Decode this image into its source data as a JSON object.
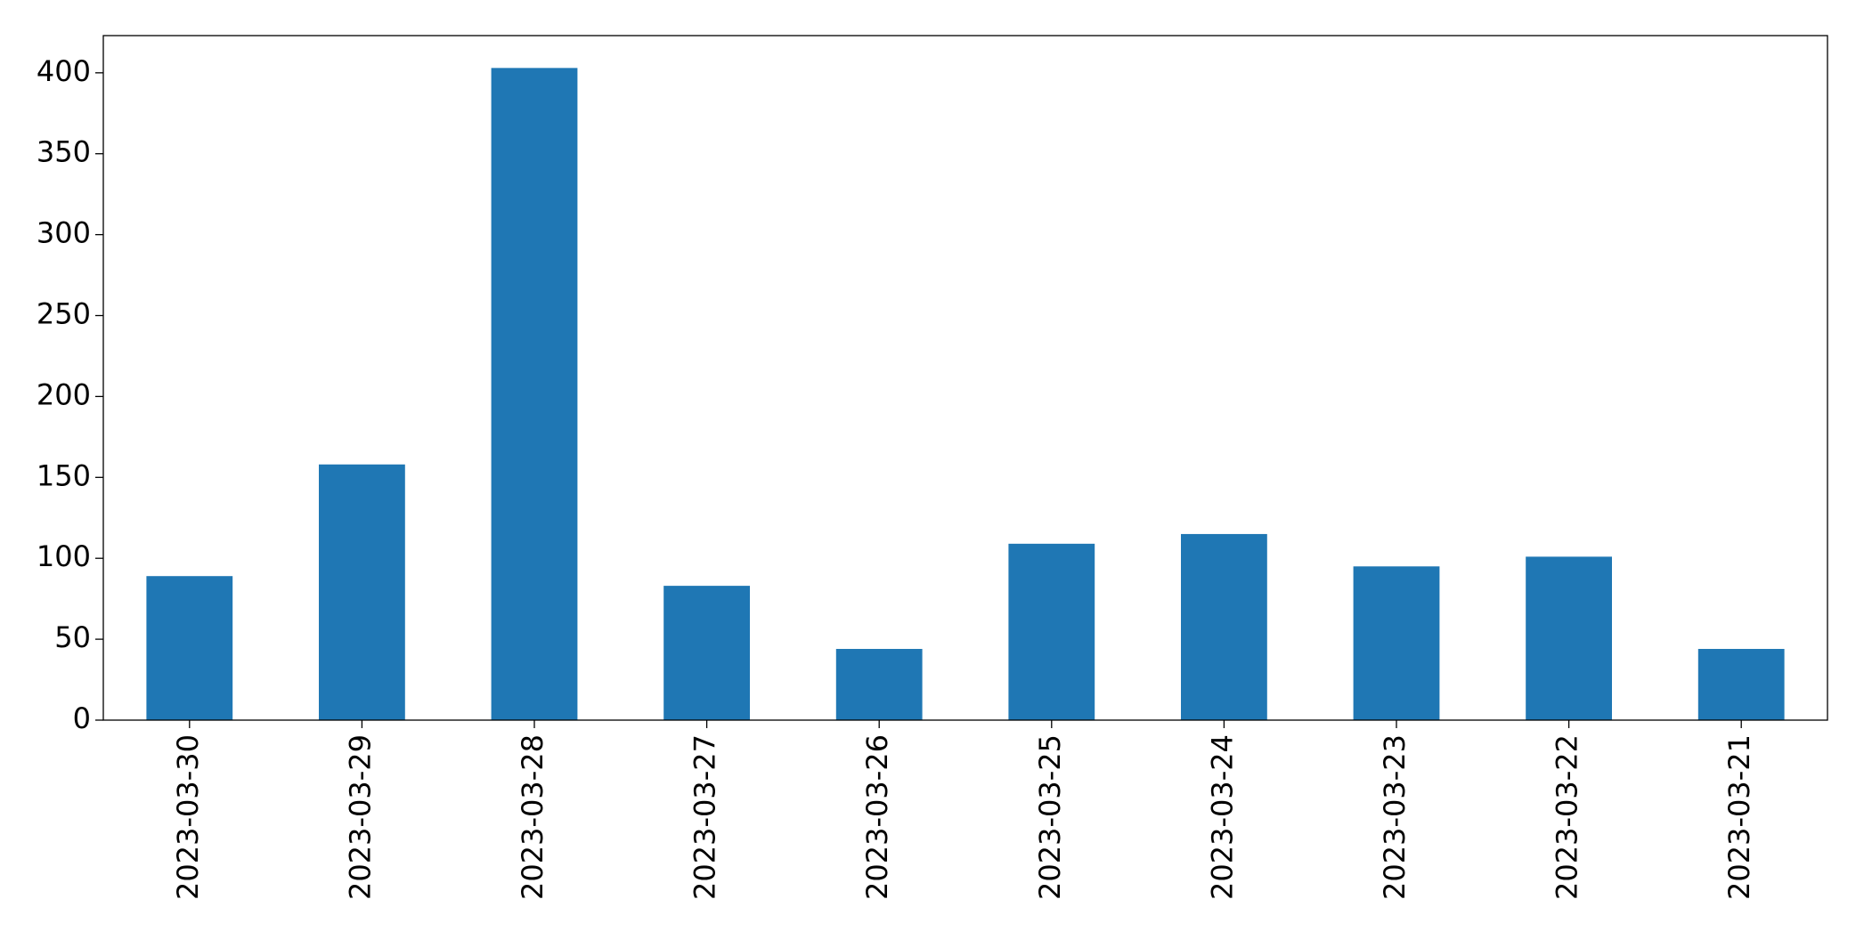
{
  "chart_data": {
    "type": "bar",
    "categories": [
      "2023-03-30",
      "2023-03-29",
      "2023-03-28",
      "2023-03-27",
      "2023-03-26",
      "2023-03-25",
      "2023-03-24",
      "2023-03-23",
      "2023-03-22",
      "2023-03-21"
    ],
    "values": [
      89,
      158,
      403,
      83,
      44,
      109,
      115,
      95,
      101,
      44
    ],
    "color": "#1f77b4",
    "ylim": [
      0,
      423
    ],
    "yticks": [
      0,
      50,
      100,
      150,
      200,
      250,
      300,
      350,
      400
    ],
    "grid": false
  }
}
